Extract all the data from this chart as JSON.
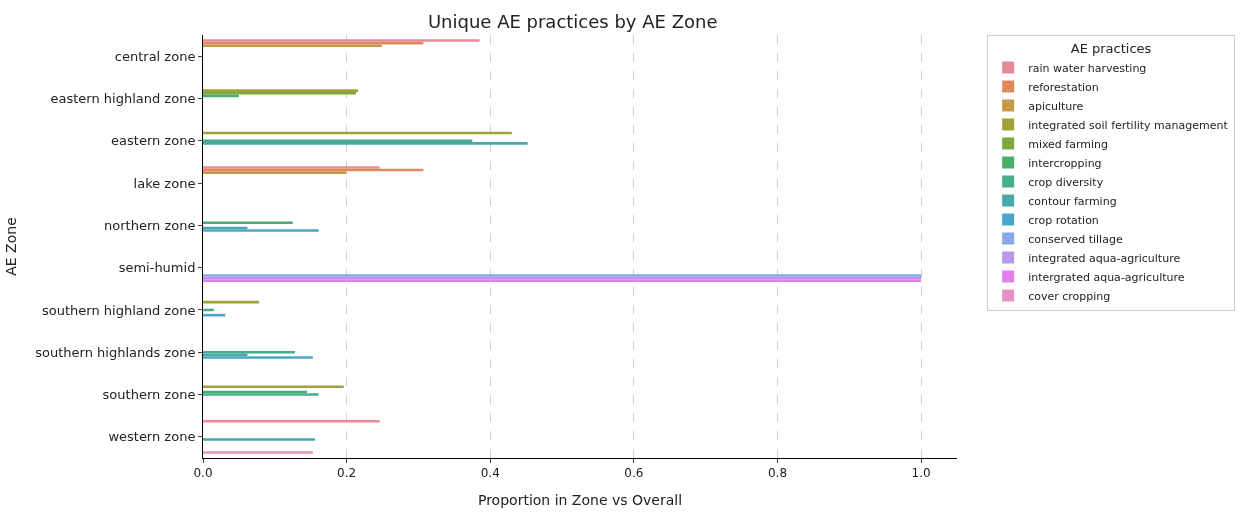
{
  "chart_data": {
    "type": "bar",
    "orientation": "horizontal",
    "title": "Unique AE practices by AE Zone",
    "xlabel": "Proportion in Zone vs Overall",
    "ylabel": "AE Zone",
    "legend_title": "AE practices",
    "categories": [
      "central zone",
      "eastern highland zone",
      "eastern zone",
      "lake zone",
      "northern zone",
      "semi-humid",
      "southern highland zone",
      "southern highlands zone",
      "southern zone",
      "western zone"
    ],
    "series": [
      {
        "name": "rain water harvesting",
        "color": "#e68a98",
        "values": [
          0.385,
          null,
          null,
          0.246,
          null,
          null,
          null,
          null,
          null,
          0.246
        ]
      },
      {
        "name": "reforestation",
        "color": "#e08a5c",
        "values": [
          0.307,
          null,
          null,
          0.307,
          null,
          null,
          null,
          null,
          null,
          null
        ]
      },
      {
        "name": "apiculture",
        "color": "#c49a48",
        "values": [
          0.249,
          null,
          null,
          0.2,
          null,
          null,
          null,
          null,
          null,
          null
        ]
      },
      {
        "name": "integrated soil fertility management",
        "color": "#a3a03c",
        "values": [
          null,
          0.216,
          0.43,
          null,
          null,
          null,
          0.078,
          null,
          0.196,
          null
        ]
      },
      {
        "name": "mixed farming",
        "color": "#7da83c",
        "values": [
          null,
          0.213,
          null,
          null,
          null,
          null,
          null,
          null,
          null,
          null
        ]
      },
      {
        "name": "intercropping",
        "color": "#48b06a",
        "values": [
          null,
          0.05,
          null,
          null,
          0.125,
          null,
          null,
          null,
          0.145,
          null
        ]
      },
      {
        "name": "crop diversity",
        "color": "#45ae8e",
        "values": [
          null,
          null,
          0.375,
          null,
          null,
          null,
          0.015,
          0.128,
          0.161,
          null
        ]
      },
      {
        "name": "contour farming",
        "color": "#47aaa8",
        "values": [
          null,
          null,
          0.452,
          null,
          0.062,
          null,
          null,
          0.062,
          null,
          0.156
        ]
      },
      {
        "name": "crop rotation",
        "color": "#4aa6c8",
        "values": [
          null,
          null,
          null,
          null,
          0.161,
          null,
          0.031,
          0.153,
          null,
          null
        ]
      },
      {
        "name": "conserved tillage",
        "color": "#8aa8e8",
        "values": [
          null,
          null,
          null,
          null,
          null,
          1.0,
          null,
          null,
          null,
          null
        ]
      },
      {
        "name": "integrated aqua-agriculture",
        "color": "#b898e8",
        "values": [
          null,
          null,
          null,
          null,
          null,
          1.0,
          null,
          null,
          null,
          null
        ]
      },
      {
        "name": "intergrated aqua-agriculture",
        "color": "#e080e8",
        "values": [
          null,
          null,
          null,
          null,
          null,
          1.0,
          null,
          null,
          null,
          null
        ]
      },
      {
        "name": "cover cropping",
        "color": "#e890c4",
        "values": [
          null,
          null,
          null,
          null,
          null,
          null,
          null,
          null,
          null,
          0.153
        ]
      }
    ],
    "xlim": [
      0,
      1.05
    ],
    "xticks": [
      {
        "value": 0,
        "label": "0.0"
      },
      {
        "value": 0.2,
        "label": "0.2"
      },
      {
        "value": 0.4,
        "label": "0.4"
      },
      {
        "value": 0.6,
        "label": "0.6"
      },
      {
        "value": 0.8,
        "label": "0.8"
      },
      {
        "value": 1.0,
        "label": "1.0"
      }
    ],
    "grid": "x",
    "legend": "right"
  }
}
